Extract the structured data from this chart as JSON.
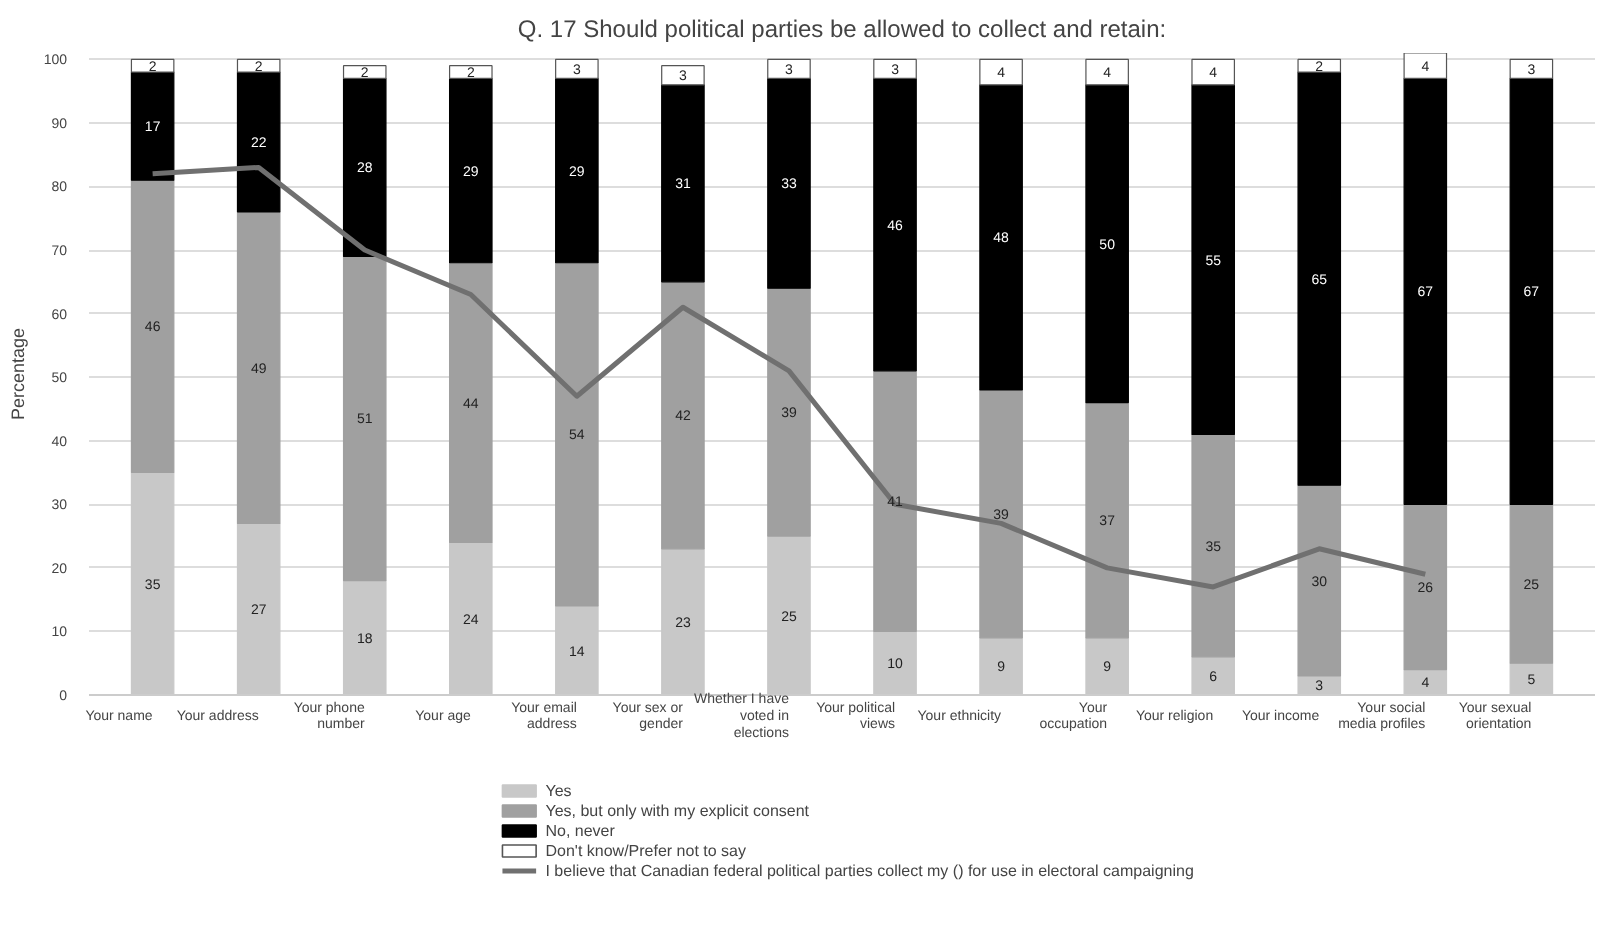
{
  "chart_data": {
    "type": "bar",
    "title": "Q. 17 Should political parties be allowed to collect and retain:",
    "ylabel": "Percentage",
    "categories": [
      "Your name",
      "Your address",
      "Your phone number",
      "Your age",
      "Your email address",
      "Your sex or gender",
      "Whether I have voted in elections",
      "Your political views",
      "Your ethnicity",
      "Your occupation",
      "Your religion",
      "Your income",
      "Your social media profiles",
      "Your sexual orientation"
    ],
    "stacked": true,
    "grid": "y",
    "legend": "bottom",
    "marker": "none",
    "line_style": "solid",
    "ylim": [
      0,
      101
    ],
    "yticks": [
      0,
      10,
      20,
      30,
      40,
      50,
      60,
      70,
      80,
      90,
      100
    ],
    "series": [
      {
        "name": "Yes",
        "color": "#c8c8c8",
        "values": [
          35,
          27,
          18,
          24,
          14,
          23,
          25,
          10,
          9,
          9,
          6,
          3,
          4,
          5
        ],
        "value_labels": [
          "35",
          "27",
          "18",
          "24",
          "14",
          "23",
          "25",
          "10",
          "9",
          "9",
          "6",
          "3",
          "4",
          "5"
        ]
      },
      {
        "name": "Yes, but only with my explicit consent",
        "color": "#a0a0a0",
        "values": [
          46,
          49,
          51,
          44,
          54,
          42,
          39,
          41,
          39,
          37,
          35,
          30,
          26,
          25
        ],
        "value_labels": [
          "46",
          "49",
          "51",
          "44",
          "54",
          "42",
          "39",
          "41",
          "39",
          "37",
          "35",
          "30",
          "26",
          "25"
        ]
      },
      {
        "name": "No, never",
        "color": "#000000",
        "values": [
          17,
          22,
          28,
          29,
          29,
          31,
          33,
          46,
          48,
          50,
          55,
          65,
          67,
          67
        ],
        "value_labels": [
          "17",
          "22",
          "28",
          "29",
          "29",
          "31",
          "33",
          "46",
          "48",
          "50",
          "55",
          "65",
          "67",
          "67"
        ]
      },
      {
        "name": "Don't know/Prefer not to say",
        "color": "#ffffff",
        "values": [
          2,
          2,
          2,
          2,
          3,
          3,
          3,
          3,
          4,
          4,
          4,
          2,
          4,
          3
        ],
        "value_labels": [
          "2",
          "2",
          "2",
          "2",
          "3",
          "3",
          "3",
          "3",
          "4",
          "4",
          "4",
          "2",
          "4",
          "3"
        ]
      },
      {
        "name": "I believe that Canadian federal political parties collect my () for use in electoral campaigning",
        "type": "line",
        "color": "#707070",
        "values": [
          82,
          83,
          70,
          63,
          47,
          61,
          51,
          30,
          27,
          20,
          17,
          23,
          19,
          null
        ]
      }
    ]
  }
}
